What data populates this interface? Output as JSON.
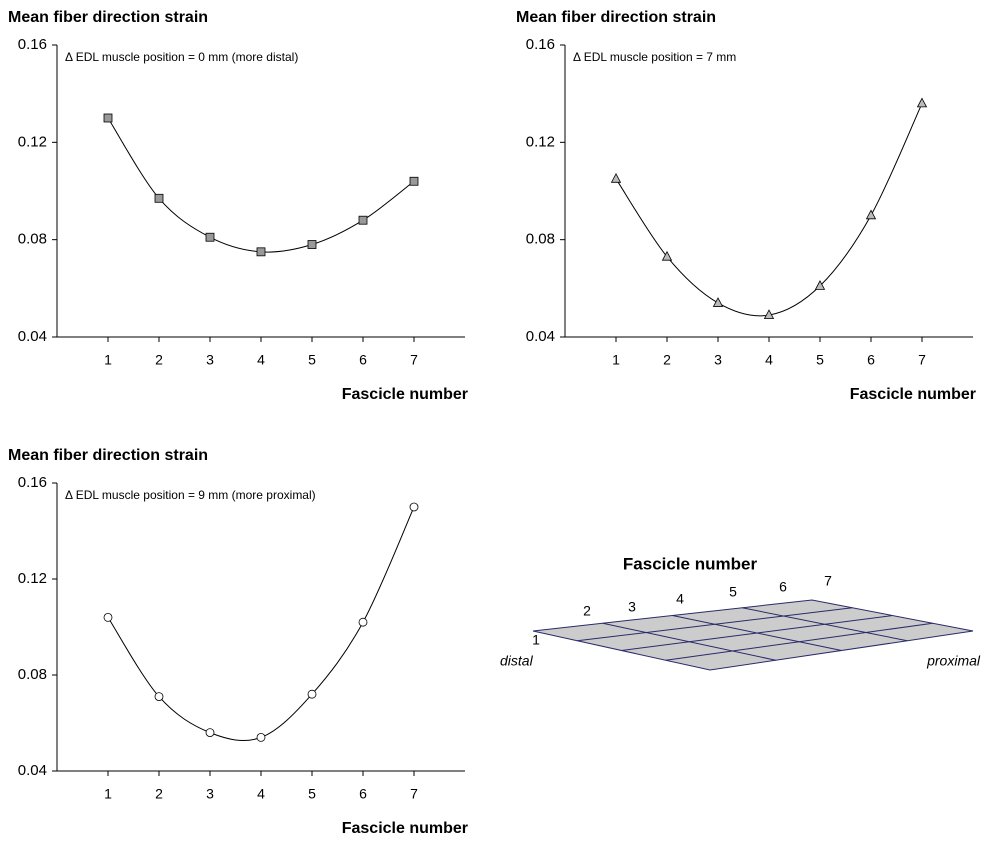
{
  "chart_data": [
    {
      "type": "line",
      "title": "Mean fiber direction strain",
      "annotation": "Δ EDL muscle position = 0 mm (more distal)",
      "x_label": "Fascicle number",
      "x": [
        1,
        2,
        3,
        4,
        5,
        6,
        7
      ],
      "values": [
        0.13,
        0.097,
        0.081,
        0.075,
        0.078,
        0.088,
        0.104
      ],
      "marker": "square",
      "marker_color": "#999999",
      "color": "#000000",
      "xlim": [
        0,
        8
      ],
      "xticks": [
        1,
        2,
        3,
        4,
        5,
        6,
        7
      ],
      "ylim": [
        0.04,
        0.16
      ],
      "yticks": [
        0.04,
        0.08,
        0.12,
        0.16
      ],
      "grid": false
    },
    {
      "type": "line",
      "title": "Mean fiber direction strain",
      "annotation": "Δ EDL muscle position = 7 mm",
      "x_label": "Fascicle number",
      "x": [
        1,
        2,
        3,
        4,
        5,
        6,
        7
      ],
      "values": [
        0.105,
        0.073,
        0.054,
        0.049,
        0.061,
        0.09,
        0.136
      ],
      "marker": "triangle",
      "marker_color": "#bbbbbb",
      "color": "#000000",
      "xlim": [
        0,
        8
      ],
      "xticks": [
        1,
        2,
        3,
        4,
        5,
        6,
        7
      ],
      "ylim": [
        0.04,
        0.16
      ],
      "yticks": [
        0.04,
        0.08,
        0.12,
        0.16
      ],
      "grid": false
    },
    {
      "type": "line",
      "title": "Mean fiber direction strain",
      "annotation": "Δ EDL muscle position = 9 mm (more proximal)",
      "x_label": "Fascicle number",
      "x": [
        1,
        2,
        3,
        4,
        5,
        6,
        7
      ],
      "values": [
        0.104,
        0.071,
        0.056,
        0.054,
        0.072,
        0.102,
        0.15
      ],
      "marker": "circle",
      "marker_color": "#ffffff",
      "color": "#000000",
      "xlim": [
        0,
        8
      ],
      "xticks": [
        1,
        2,
        3,
        4,
        5,
        6,
        7
      ],
      "ylim": [
        0.04,
        0.16
      ],
      "yticks": [
        0.04,
        0.08,
        0.12,
        0.16
      ],
      "grid": false
    }
  ],
  "diagram": {
    "title": "Fascicle number",
    "labels": [
      "1",
      "2",
      "3",
      "4",
      "5",
      "6",
      "7"
    ],
    "left": "distal",
    "right": "proximal"
  }
}
